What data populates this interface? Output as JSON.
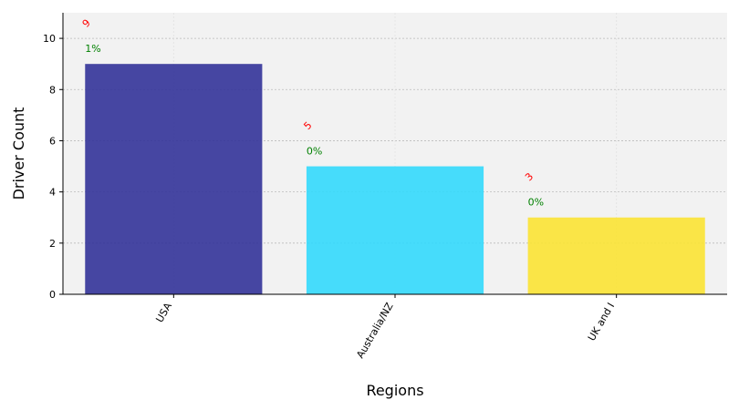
{
  "chart_data": {
    "type": "bar",
    "title": "",
    "xlabel": "Regions",
    "ylabel": "Driver Count",
    "categories": [
      "USA",
      "Australia/NZ",
      "UK and I"
    ],
    "values": [
      9,
      5,
      3
    ],
    "value_labels": [
      "9",
      "5",
      "3"
    ],
    "percent_labels": [
      "1%",
      "0%",
      "0%"
    ],
    "colors": [
      "#333399",
      "#33d9fc",
      "#fbe334"
    ],
    "ylim": [
      0,
      11
    ],
    "yticks": [
      0,
      2,
      4,
      6,
      8,
      10
    ],
    "ytick_labels": [
      "0",
      "2",
      "4",
      "6",
      "8",
      "10"
    ],
    "grid": true,
    "value_label_color": "#ff0000",
    "percent_label_color": "#008000",
    "plot_background": "#f2f2f2"
  }
}
